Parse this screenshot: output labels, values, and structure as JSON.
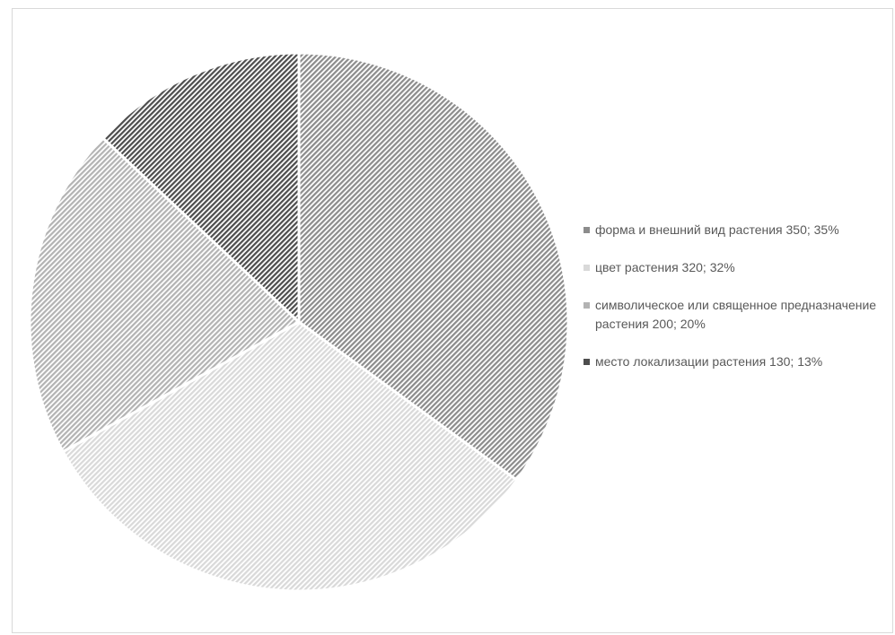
{
  "chart_data": {
    "type": "pie",
    "slices": [
      {
        "label": "форма и внешний вид растения 350; 35%",
        "value": 350,
        "percent": 35,
        "color": "#8c8c8c"
      },
      {
        "label": "цвет растения 320; 32%",
        "value": 320,
        "percent": 32,
        "color": "#d9d9d9"
      },
      {
        "label": "символическое или священное предназначение растения 200; 20%",
        "value": 200,
        "percent": 20,
        "color": "#b3b3b3"
      },
      {
        "label": "место локализации растения 130; 13%",
        "value": 130,
        "percent": 13,
        "color": "#4d4d4d"
      }
    ],
    "legend_position": "right"
  }
}
